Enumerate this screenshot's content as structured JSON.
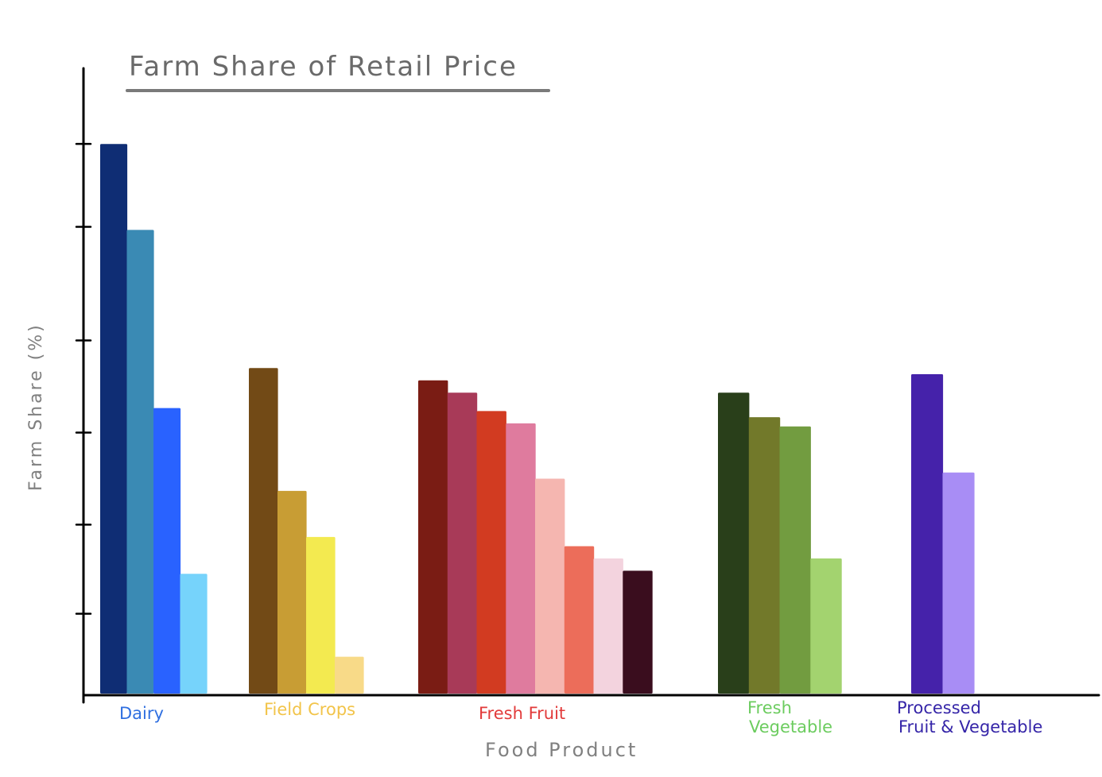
{
  "chart_data": {
    "type": "bar",
    "title": "Farm Share of Retail Price",
    "xlabel": "Food Product",
    "ylabel": "Farm Share (%)",
    "ylim": [
      0,
      100
    ],
    "grid": false,
    "legend": "none",
    "y_ticks_labeled": false,
    "groups": [
      {
        "label": "Dairy",
        "label_color": "#2f6fe0",
        "values": [
          89.5,
          75.5,
          46.5,
          19.5
        ],
        "colors": [
          "#0f2d74",
          "#3a8ab4",
          "#2962ff",
          "#76d3fb"
        ]
      },
      {
        "label": "Field Crops",
        "label_color": "#f2c44a",
        "values": [
          53,
          33,
          25.5,
          6
        ],
        "colors": [
          "#724a16",
          "#c89d34",
          "#f3ea50",
          "#f8da88"
        ]
      },
      {
        "label": "Fresh Fruit",
        "label_color": "#e23b3b",
        "values": [
          51,
          49,
          46,
          44,
          35,
          24,
          22,
          20
        ],
        "colors": [
          "#7a1c14",
          "#a83a58",
          "#d23b21",
          "#df7b9e",
          "#f5b6b0",
          "#ec6d5a",
          "#f3d3de",
          "#3a0d1e"
        ]
      },
      {
        "label": "Fresh Vegetable",
        "label_color": "#6ccc5f",
        "values": [
          49,
          45,
          43.5,
          22
        ],
        "colors": [
          "#293f1a",
          "#72792a",
          "#729c40",
          "#a3d36f"
        ]
      },
      {
        "label": "Processed Fruit & Vegetable",
        "label_color": "#3525a8",
        "values": [
          52,
          36
        ],
        "colors": [
          "#4522aa",
          "#a88df5"
        ]
      }
    ]
  }
}
